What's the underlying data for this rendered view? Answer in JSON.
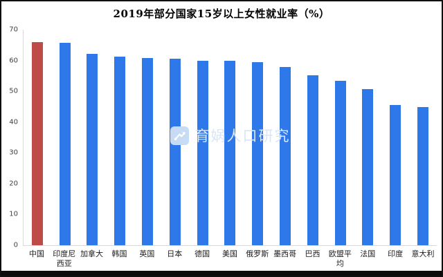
{
  "watermark": {
    "text": "育娲人口研究",
    "logo_icon": "trend-line-arrow-icon"
  },
  "colors": {
    "highlight_bar": "#be4b48",
    "default_bar": "#2e78ea",
    "axis_line": "#d9d9d9",
    "watermark_text": "#d9e6f8",
    "watermark_logo_bg": "#c8dbf5",
    "frame_border": "#0f0f0f"
  },
  "chart_data": {
    "type": "bar",
    "title": "2019年部分国家15岁以上女性就业率（%）",
    "categories": [
      "中国",
      "印度尼西亚",
      "加拿大",
      "韩国",
      "英国",
      "日本",
      "德国",
      "美国",
      "俄罗斯",
      "墨西哥",
      "巴西",
      "欧盟平均",
      "法国",
      "印度",
      "意大利"
    ],
    "values": [
      66,
      65.7,
      62.1,
      61.2,
      60.8,
      60.5,
      59.9,
      59.8,
      59.4,
      58,
      55.3,
      53.5,
      50.7,
      45.5,
      44.9
    ],
    "highlight_index": 0,
    "xlabel": "",
    "ylabel": "",
    "ylim": [
      0,
      70
    ],
    "y_ticks": [
      0,
      10,
      20,
      30,
      40,
      50,
      60,
      70
    ],
    "grid": false,
    "legend": "none"
  }
}
